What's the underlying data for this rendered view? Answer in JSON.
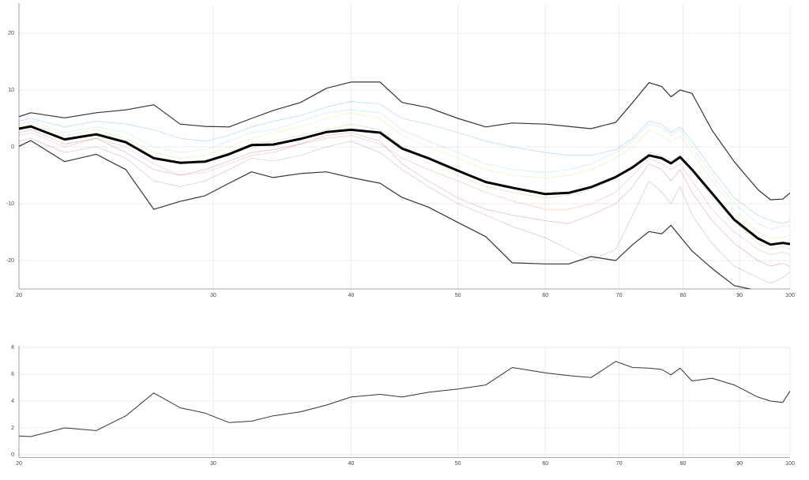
{
  "chart_data": [
    {
      "type": "line",
      "xscale": "log",
      "grid": true,
      "xlim": [
        20,
        100
      ],
      "xticks": [
        20,
        30,
        40,
        50,
        60,
        70,
        80,
        90,
        100
      ],
      "ylim": [
        -25,
        25
      ],
      "yticks": [
        -20,
        -10,
        0,
        10,
        20
      ],
      "x": [
        20,
        20.5,
        22,
        23.5,
        25,
        26.5,
        28,
        29.5,
        31,
        32.5,
        34,
        36,
        38,
        40,
        42.5,
        44.5,
        47,
        50,
        53,
        56,
        60,
        63,
        66,
        69.5,
        72,
        74.5,
        76.5,
        78,
        79.5,
        81.5,
        85,
        89,
        93.5,
        96,
        98.5,
        100
      ],
      "series": [
        {
          "color": "#0072bd",
          "line_width": 0.6,
          "opacity": 0.35,
          "values": [
            4.5,
            5,
            3.5,
            4.5,
            4,
            3,
            1.5,
            1,
            2,
            3.5,
            4.5,
            5.5,
            7,
            8,
            7.5,
            5,
            4,
            2.5,
            1,
            0,
            -1,
            -1.5,
            -1.5,
            -0.5,
            1.5,
            4.5,
            4,
            2.5,
            3.5,
            1,
            -4,
            -9,
            -12,
            -13,
            -13.5,
            -13
          ]
        },
        {
          "color": "#d95319",
          "line_width": 0.6,
          "opacity": 0.35,
          "values": [
            2,
            2.5,
            0,
            1.5,
            0,
            -3,
            -5,
            -4.5,
            -3,
            -1.5,
            -1,
            0.5,
            1.5,
            2,
            0.5,
            -2,
            -4,
            -6,
            -8,
            -9.5,
            -11,
            -11,
            -10,
            -8,
            -5,
            -2,
            -3,
            -4,
            -3,
            -6,
            -11,
            -15,
            -18,
            -19,
            -18.5,
            -19
          ]
        },
        {
          "color": "#edb120",
          "line_width": 0.6,
          "opacity": 0.35,
          "values": [
            3.5,
            4,
            2,
            3,
            1.5,
            -1,
            -2,
            -1.5,
            0,
            1.5,
            2.5,
            3.5,
            5,
            6,
            5,
            2,
            0,
            -2,
            -4,
            -5,
            -5.5,
            -5,
            -4,
            -2,
            0,
            3,
            2,
            1,
            2,
            -1,
            -6,
            -11,
            -15,
            -16,
            -16,
            -15.5
          ]
        },
        {
          "color": "#7e2f8e",
          "line_width": 0.6,
          "opacity": 0.35,
          "values": [
            1,
            1.5,
            -1,
            0,
            -2,
            -6,
            -7,
            -6,
            -4,
            -2,
            -2.5,
            -1.5,
            0,
            1,
            -1,
            -4,
            -7,
            -10,
            -12,
            -14,
            -16,
            -18,
            -20,
            -18,
            -12,
            -6,
            -8,
            -10,
            -7,
            -12,
            -17,
            -21,
            -23,
            -24,
            -23,
            -22
          ]
        },
        {
          "color": "#77ac30",
          "line_width": 0.6,
          "opacity": 0.35,
          "values": [
            3,
            3.5,
            1.5,
            2.5,
            1,
            -2,
            -3,
            -2.5,
            -1,
            0.5,
            1,
            2,
            3,
            4,
            3,
            0,
            -2,
            -5,
            -7,
            -8,
            -9,
            -8.5,
            -7.5,
            -5.5,
            -3.5,
            -1,
            -1.5,
            -2.5,
            -1.5,
            -4,
            -9,
            -13,
            -17,
            -18,
            -17.5,
            -18
          ]
        },
        {
          "color": "#4dbeee",
          "line_width": 0.6,
          "opacity": 0.35,
          "values": [
            4,
            4.5,
            2.5,
            3.5,
            2.5,
            0,
            -1,
            -0.5,
            1,
            2.5,
            3,
            4.5,
            6,
            6.5,
            6,
            3,
            1,
            -1,
            -3,
            -4,
            -4.5,
            -4,
            -3,
            -1,
            1,
            4,
            3.5,
            2,
            3,
            0,
            -5,
            -10,
            -13.5,
            -14.5,
            -14,
            -14
          ]
        },
        {
          "color": "#a2142f",
          "line_width": 0.6,
          "opacity": 0.35,
          "values": [
            2.5,
            3,
            0.5,
            1.5,
            -1,
            -4,
            -5,
            -4,
            -2.5,
            -1,
            -0.5,
            0.5,
            2,
            2.5,
            1,
            -3,
            -6,
            -9,
            -11,
            -12,
            -13,
            -13.5,
            -12,
            -10,
            -7,
            -3,
            -4,
            -6,
            -4,
            -8,
            -13,
            -17,
            -20,
            -21,
            -20.5,
            -21
          ]
        },
        {
          "color": "#333333",
          "line_width": 1.2,
          "opacity": 1,
          "values": [
            5.3,
            6.0,
            5.1,
            6.0,
            6.5,
            7.4,
            4.0,
            3.6,
            3.5,
            5.0,
            6.4,
            7.8,
            10.3,
            11.4,
            11.4,
            7.8,
            6.9,
            5.0,
            3.5,
            4.2,
            4.0,
            3.6,
            3.2,
            4.3,
            7.8,
            11.3,
            10.6,
            8.8,
            10.0,
            9.4,
            2.9,
            -2.6,
            -7.5,
            -9.3,
            -9.2,
            -8.1
          ]
        },
        {
          "color": "#333333",
          "line_width": 1.2,
          "opacity": 1,
          "values": [
            0.1,
            1.1,
            -2.6,
            -1.3,
            -4.0,
            -11.0,
            -9.6,
            -8.6,
            -6.4,
            -4.4,
            -5.4,
            -4.7,
            -4.4,
            -5.4,
            -6.4,
            -8.9,
            -10.6,
            -13.3,
            -15.8,
            -20.4,
            -20.6,
            -20.6,
            -19.3,
            -20.0,
            -17.2,
            -14.9,
            -15.3,
            -13.8,
            -15.8,
            -18.3,
            -21.4,
            -24.4,
            -25.3,
            -25.6,
            -25.3,
            -25.1
          ]
        },
        {
          "color": "#000000",
          "line_width": 3,
          "opacity": 1,
          "values": [
            3.2,
            3.6,
            1.3,
            2.2,
            0.8,
            -2.0,
            -2.8,
            -2.6,
            -1.3,
            0.3,
            0.4,
            1.4,
            2.6,
            3.0,
            2.5,
            -0.3,
            -2.0,
            -4.2,
            -6.2,
            -7.2,
            -8.3,
            -8.1,
            -7.1,
            -5.3,
            -3.6,
            -1.5,
            -2.0,
            -2.9,
            -1.8,
            -4.0,
            -8.2,
            -12.8,
            -16.1,
            -17.2,
            -16.9,
            -17.1
          ]
        }
      ]
    },
    {
      "type": "line",
      "xscale": "log",
      "grid": true,
      "xlim": [
        20,
        100
      ],
      "xticks": [
        20,
        30,
        40,
        50,
        60,
        70,
        80,
        90,
        100
      ],
      "ylim": [
        -0.2,
        8
      ],
      "yticks": [
        0,
        2,
        4,
        6,
        8
      ],
      "x": [
        20,
        20.5,
        22,
        23.5,
        25,
        26.5,
        28,
        29.5,
        31,
        32.5,
        34,
        36,
        38,
        40,
        42.5,
        44.5,
        47,
        50,
        53,
        56,
        60,
        63,
        66,
        69.5,
        72,
        74.5,
        76.5,
        78,
        79.5,
        81.5,
        85,
        89,
        93.5,
        96,
        98.5,
        100
      ],
      "series": [
        {
          "color": "#333333",
          "line_width": 1,
          "opacity": 1,
          "values": [
            1.4,
            1.35,
            2.0,
            1.8,
            2.9,
            4.6,
            3.5,
            3.1,
            2.4,
            2.5,
            2.9,
            3.2,
            3.7,
            4.3,
            4.5,
            4.3,
            4.65,
            4.9,
            5.2,
            6.5,
            6.1,
            5.9,
            5.75,
            6.95,
            6.5,
            6.45,
            6.35,
            5.95,
            6.45,
            5.5,
            5.7,
            5.2,
            4.3,
            4.0,
            3.9,
            4.75
          ]
        }
      ]
    }
  ]
}
